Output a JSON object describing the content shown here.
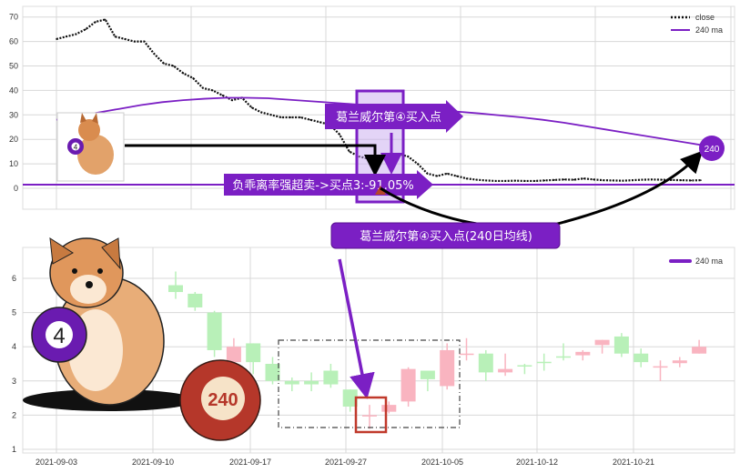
{
  "chart_data": [
    {
      "type": "line",
      "legend": [
        "close",
        "240 ma"
      ],
      "legend_position": "top-right",
      "grid": true,
      "ylim": [
        -8,
        74
      ],
      "yticks": [
        "0",
        "10",
        "20",
        "30",
        "40",
        "50",
        "60",
        "70"
      ],
      "series": [
        {
          "name": "close",
          "style": "dotted",
          "color": "#111111",
          "values": [
            61,
            62,
            63,
            65,
            68,
            69,
            62,
            61,
            60,
            60,
            55,
            51,
            50,
            47,
            45,
            41,
            40,
            38,
            36,
            37,
            33,
            31,
            30,
            29,
            29,
            29,
            28,
            27,
            26,
            22,
            15,
            13,
            12,
            13,
            12,
            14,
            13,
            10,
            6,
            5,
            6,
            5,
            4,
            3.5,
            3.2,
            3,
            3,
            3.1,
            3,
            3,
            3.2,
            3.4,
            3.6,
            3.5,
            4,
            3.6,
            3.3,
            3.2,
            3.1,
            3.3,
            3.5,
            3.6,
            3.5,
            3.4,
            3.3,
            3.2,
            3.3
          ]
        },
        {
          "name": "240 ma",
          "style": "solid",
          "color": "#7b1fc4",
          "values": [
            28,
            29.5,
            31,
            32.5,
            34,
            35.2,
            36,
            36.6,
            37,
            37,
            36.8,
            36.2,
            35.6,
            35,
            34.4,
            33.8,
            33.2,
            32.6,
            32,
            31.3,
            30.6,
            29.8,
            29,
            28,
            26.8,
            25.4,
            24,
            22.6,
            21.2,
            19.8,
            18.4,
            17
          ]
        }
      ],
      "hline": {
        "value": 1.5,
        "color": "#7b1fc4"
      },
      "annotations": {
        "granville_4": "葛兰威尔第④买入点",
        "oversold": "负乖离率强超卖->买点3:-91.05%",
        "granville_4_ma": "葛兰威尔第④买入点(240日均线)",
        "ma_badge": "240"
      }
    },
    {
      "type": "candlestick",
      "legend": [
        "240 ma"
      ],
      "legend_position": "top-right",
      "grid": true,
      "ylim": [
        0.9,
        6.8
      ],
      "yticks": [
        "1",
        "2",
        "3",
        "4",
        "5",
        "6"
      ],
      "xticks": [
        "2021-09-03",
        "2021-09-10",
        "2021-09-17",
        "2021-09-27",
        "2021-10-05",
        "2021-10-12",
        "2021-10-21"
      ],
      "up_color": "#f9b4c0",
      "down_color": "#b8f0b8",
      "candles": [
        {
          "o": 5.8,
          "c": 5.6,
          "h": 6.2,
          "l": 5.4
        },
        {
          "o": 5.55,
          "c": 5.15,
          "h": 5.6,
          "l": 5.05
        },
        {
          "o": 5.0,
          "c": 3.9,
          "h": 5.05,
          "l": 3.7
        },
        {
          "o": 3.55,
          "c": 4.0,
          "h": 4.25,
          "l": 3.5
        },
        {
          "o": 4.1,
          "c": 3.55,
          "h": 4.1,
          "l": 3.2
        },
        {
          "o": 3.5,
          "c": 3.0,
          "h": 3.7,
          "l": 2.9
        },
        {
          "o": 3.0,
          "c": 2.9,
          "h": 3.1,
          "l": 2.7
        },
        {
          "o": 3.0,
          "c": 2.9,
          "h": 3.25,
          "l": 2.7
        },
        {
          "o": 3.3,
          "c": 2.9,
          "h": 3.5,
          "l": 2.8
        },
        {
          "o": 2.75,
          "c": 2.25,
          "h": 2.75,
          "l": 2.1
        },
        {
          "o": 2.0,
          "c": 2.0,
          "h": 2.3,
          "l": 1.6
        },
        {
          "o": 2.1,
          "c": 2.3,
          "h": 2.4,
          "l": 2.05
        },
        {
          "o": 2.4,
          "c": 3.35,
          "h": 3.4,
          "l": 2.25
        },
        {
          "o": 3.3,
          "c": 3.05,
          "h": 3.3,
          "l": 2.7
        },
        {
          "o": 2.85,
          "c": 3.9,
          "h": 4.1,
          "l": 2.75
        },
        {
          "o": 3.79,
          "c": 3.8,
          "h": 4.25,
          "l": 3.6
        },
        {
          "o": 3.8,
          "c": 3.25,
          "h": 3.9,
          "l": 3.0
        },
        {
          "o": 3.25,
          "c": 3.35,
          "h": 3.8,
          "l": 3.15
        },
        {
          "o": 3.46,
          "c": 3.45,
          "h": 3.5,
          "l": 3.2
        },
        {
          "o": 3.56,
          "c": 3.55,
          "h": 3.8,
          "l": 3.3
        },
        {
          "o": 3.72,
          "c": 3.7,
          "h": 4.1,
          "l": 3.6
        },
        {
          "o": 3.75,
          "c": 3.85,
          "h": 3.9,
          "l": 3.6
        },
        {
          "o": 4.05,
          "c": 4.2,
          "h": 4.2,
          "l": 3.8
        },
        {
          "o": 4.3,
          "c": 3.8,
          "h": 4.4,
          "l": 3.7
        },
        {
          "o": 3.8,
          "c": 3.55,
          "h": 3.95,
          "l": 3.4
        },
        {
          "o": 3.42,
          "c": 3.43,
          "h": 3.6,
          "l": 3.0
        },
        {
          "o": 3.52,
          "c": 3.6,
          "h": 3.7,
          "l": 3.4
        },
        {
          "o": 3.8,
          "c": 4.0,
          "h": 4.2,
          "l": 3.8
        }
      ]
    }
  ],
  "illustration": {
    "ball_small": "4",
    "ball_large": "240"
  }
}
